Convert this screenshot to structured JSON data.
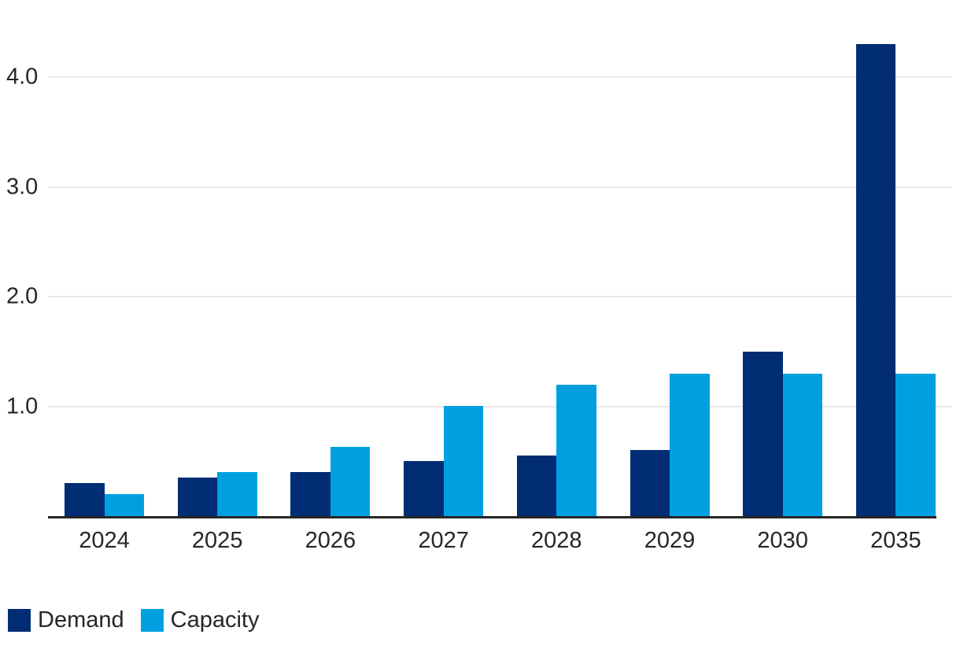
{
  "chart_data": {
    "type": "bar",
    "title": "",
    "categories": [
      "2024",
      "2025",
      "2026",
      "2027",
      "2028",
      "2029",
      "2030",
      "2035"
    ],
    "series": [
      {
        "name": "Demand",
        "color": "#002d74",
        "values": [
          0.3,
          0.35,
          0.4,
          0.5,
          0.55,
          0.6,
          1.5,
          4.3
        ]
      },
      {
        "name": "Capacity",
        "color": "#00a0e0",
        "values": [
          0.2,
          0.4,
          0.63,
          1.0,
          1.2,
          1.3,
          1.3,
          1.3
        ]
      }
    ],
    "xlabel": "",
    "ylabel": "",
    "y_axis": {
      "ticks": [
        {
          "value": 1,
          "label": "1.0"
        },
        {
          "value": 2,
          "label": "2.0"
        },
        {
          "value": 3,
          "label": "3.0"
        },
        {
          "value": 4,
          "label": "4.0"
        }
      ],
      "range": [
        0,
        4.35
      ],
      "gridlines": true
    },
    "legend": {
      "position": "bottom-left",
      "items": [
        {
          "label": "Demand",
          "color": "#002d74"
        },
        {
          "label": "Capacity",
          "color": "#00a0e0"
        }
      ]
    }
  },
  "colors": {
    "background": "#ffffff",
    "axis_line": "#262626",
    "gridline": "#e8e8e8",
    "text": "#262626",
    "demand": "#002d74",
    "capacity": "#00a0e0"
  }
}
